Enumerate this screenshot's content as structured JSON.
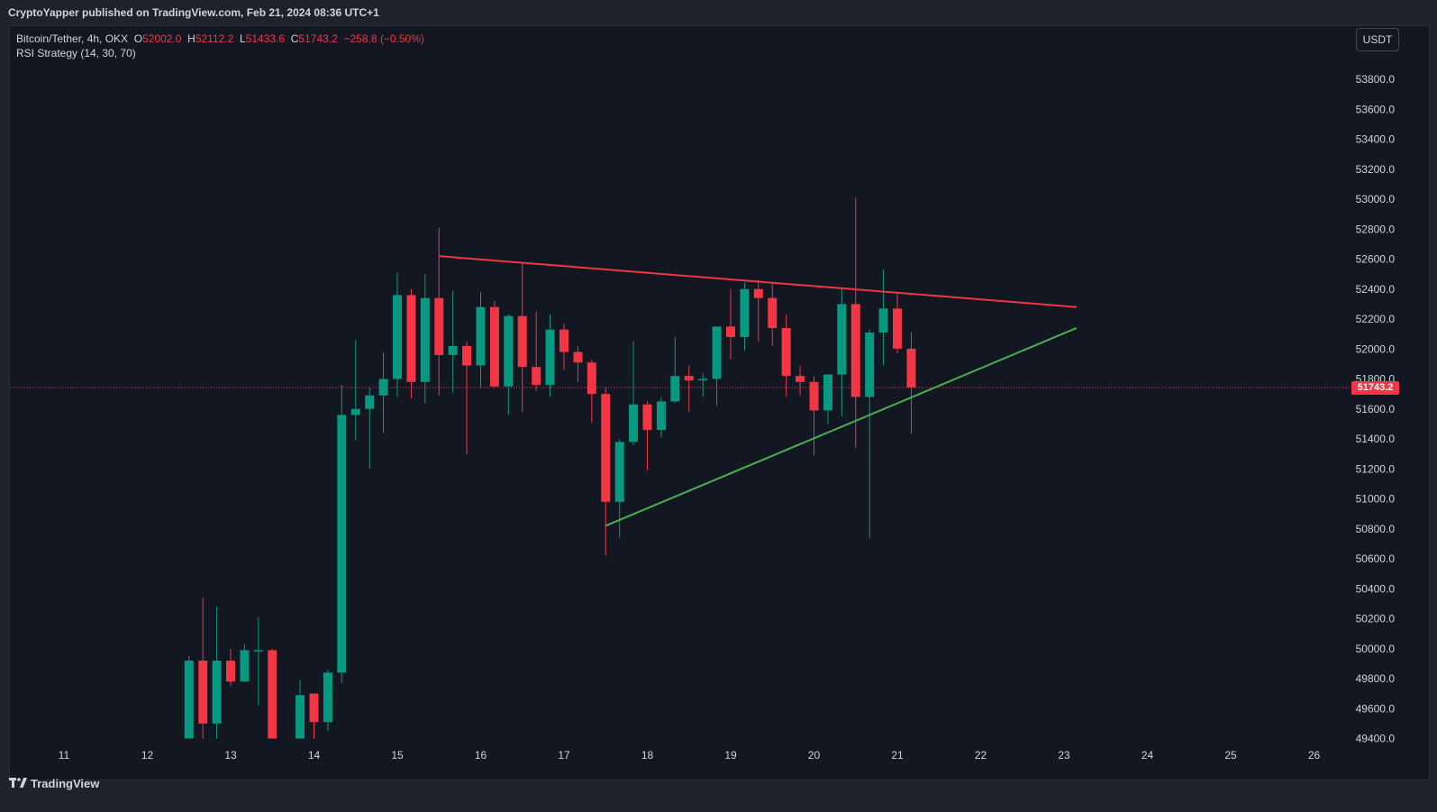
{
  "header": {
    "publisher": "CryptoYapper published on TradingView.com, Feb 21, 2024 08:36 UTC+1"
  },
  "legend": {
    "symbol": "Bitcoin/Tether, 4h, OKX",
    "open_label": "O",
    "open": "52002.0",
    "high_label": "H",
    "high": "52112.2",
    "low_label": "L",
    "low": "51433.6",
    "close_label": "C",
    "close": "51743.2",
    "change": "−258.8 (−0.50%)",
    "indicator": "RSI Strategy (14, 30, 70)"
  },
  "currency_button": "USDT",
  "last_price_tag": "51743.2",
  "footer": {
    "brand": "TradingView"
  },
  "colors": {
    "up": "#089981",
    "down": "#f23645",
    "resistance": "#f23645",
    "support": "#4caf50",
    "background": "#131722"
  },
  "chart_data": {
    "type": "candlestick",
    "title": "Bitcoin/Tether, 4h, OKX",
    "x_tick_labels": [
      "11",
      "12",
      "13",
      "14",
      "15",
      "16",
      "17",
      "18",
      "19",
      "20",
      "21",
      "22",
      "23",
      "24",
      "25",
      "26"
    ],
    "x_tick_values": [
      11,
      12,
      13,
      14,
      15,
      16,
      17,
      18,
      19,
      20,
      21,
      22,
      23,
      24,
      25,
      26
    ],
    "y_tick_labels": [
      "53800.0",
      "53600.0",
      "53400.0",
      "53200.0",
      "53000.0",
      "52800.0",
      "52600.0",
      "52400.0",
      "52200.0",
      "52000.0",
      "51800.0",
      "51600.0",
      "51400.0",
      "51200.0",
      "51000.0",
      "50800.0",
      "50600.0",
      "50400.0",
      "50200.0",
      "50000.0",
      "49800.0",
      "49600.0",
      "49400.0"
    ],
    "ylim": [
      49350,
      54050
    ],
    "last_price": 51743.2,
    "candles": [
      {
        "t": 12.5,
        "o": 49400,
        "h": 49950,
        "l": 49400,
        "c": 49920
      },
      {
        "t": 12.667,
        "o": 49920,
        "h": 50340,
        "l": 49400,
        "c": 49500
      },
      {
        "t": 12.833,
        "o": 49500,
        "h": 50280,
        "l": 49400,
        "c": 49920
      },
      {
        "t": 13.0,
        "o": 49920,
        "h": 50000,
        "l": 49750,
        "c": 49780
      },
      {
        "t": 13.167,
        "o": 49780,
        "h": 50030,
        "l": 49780,
        "c": 49990
      },
      {
        "t": 13.333,
        "o": 49990,
        "h": 50210,
        "l": 49620,
        "c": 49990
      },
      {
        "t": 13.5,
        "o": 49990,
        "h": 50000,
        "l": 49400,
        "c": 49400
      },
      {
        "t": 13.833,
        "o": 49400,
        "h": 49790,
        "l": 49400,
        "c": 49690
      },
      {
        "t": 14.0,
        "o": 49700,
        "h": 49700,
        "l": 49400,
        "c": 49510
      },
      {
        "t": 14.167,
        "o": 49510,
        "h": 49860,
        "l": 49450,
        "c": 49840
      },
      {
        "t": 14.333,
        "o": 49840,
        "h": 51760,
        "l": 49770,
        "c": 51560
      },
      {
        "t": 14.5,
        "o": 51560,
        "h": 52060,
        "l": 51390,
        "c": 51600
      },
      {
        "t": 14.667,
        "o": 51600,
        "h": 51740,
        "l": 51200,
        "c": 51690
      },
      {
        "t": 14.833,
        "o": 51690,
        "h": 51980,
        "l": 51440,
        "c": 51800
      },
      {
        "t": 15.0,
        "o": 51800,
        "h": 52510,
        "l": 51680,
        "c": 52360
      },
      {
        "t": 15.167,
        "o": 52360,
        "h": 52400,
        "l": 51670,
        "c": 51780
      },
      {
        "t": 15.333,
        "o": 51780,
        "h": 52500,
        "l": 51640,
        "c": 52340
      },
      {
        "t": 15.5,
        "o": 52340,
        "h": 52810,
        "l": 51690,
        "c": 51960
      },
      {
        "t": 15.667,
        "o": 51960,
        "h": 52390,
        "l": 51710,
        "c": 52020
      },
      {
        "t": 15.833,
        "o": 52020,
        "h": 52050,
        "l": 51300,
        "c": 51890
      },
      {
        "t": 16.0,
        "o": 51890,
        "h": 52380,
        "l": 51740,
        "c": 52280
      },
      {
        "t": 16.167,
        "o": 52280,
        "h": 52320,
        "l": 51740,
        "c": 51750
      },
      {
        "t": 16.333,
        "o": 51750,
        "h": 52230,
        "l": 51560,
        "c": 52220
      },
      {
        "t": 16.5,
        "o": 52220,
        "h": 52580,
        "l": 51580,
        "c": 51880
      },
      {
        "t": 16.667,
        "o": 51880,
        "h": 52250,
        "l": 51720,
        "c": 51760
      },
      {
        "t": 16.833,
        "o": 51760,
        "h": 52230,
        "l": 51680,
        "c": 52130
      },
      {
        "t": 17.0,
        "o": 52130,
        "h": 52170,
        "l": 51860,
        "c": 51980
      },
      {
        "t": 17.167,
        "o": 51980,
        "h": 52020,
        "l": 51780,
        "c": 51910
      },
      {
        "t": 17.333,
        "o": 51910,
        "h": 51930,
        "l": 51510,
        "c": 51700
      },
      {
        "t": 17.5,
        "o": 51700,
        "h": 51740,
        "l": 50620,
        "c": 50980
      },
      {
        "t": 17.667,
        "o": 50980,
        "h": 51400,
        "l": 50740,
        "c": 51380
      },
      {
        "t": 17.833,
        "o": 51380,
        "h": 52050,
        "l": 51360,
        "c": 51630
      },
      {
        "t": 18.0,
        "o": 51630,
        "h": 51650,
        "l": 51190,
        "c": 51460
      },
      {
        "t": 18.167,
        "o": 51460,
        "h": 51680,
        "l": 51410,
        "c": 51650
      },
      {
        "t": 18.333,
        "o": 51650,
        "h": 52080,
        "l": 51640,
        "c": 51820
      },
      {
        "t": 18.5,
        "o": 51820,
        "h": 51890,
        "l": 51580,
        "c": 51790
      },
      {
        "t": 18.667,
        "o": 51790,
        "h": 51840,
        "l": 51680,
        "c": 51800
      },
      {
        "t": 18.833,
        "o": 51800,
        "h": 52140,
        "l": 51620,
        "c": 52150
      },
      {
        "t": 19.0,
        "o": 52150,
        "h": 52400,
        "l": 51930,
        "c": 52080
      },
      {
        "t": 19.167,
        "o": 52080,
        "h": 52440,
        "l": 51990,
        "c": 52400
      },
      {
        "t": 19.333,
        "o": 52400,
        "h": 52460,
        "l": 52050,
        "c": 52340
      },
      {
        "t": 19.5,
        "o": 52340,
        "h": 52440,
        "l": 52020,
        "c": 52140
      },
      {
        "t": 19.667,
        "o": 52140,
        "h": 52230,
        "l": 51680,
        "c": 51820
      },
      {
        "t": 19.833,
        "o": 51820,
        "h": 51890,
        "l": 51690,
        "c": 51780
      },
      {
        "t": 20.0,
        "o": 51780,
        "h": 51820,
        "l": 51290,
        "c": 51590
      },
      {
        "t": 20.167,
        "o": 51590,
        "h": 51830,
        "l": 51500,
        "c": 51830
      },
      {
        "t": 20.333,
        "o": 51830,
        "h": 52400,
        "l": 51550,
        "c": 52300
      },
      {
        "t": 20.5,
        "o": 52300,
        "h": 53010,
        "l": 51340,
        "c": 51680
      },
      {
        "t": 20.667,
        "o": 51680,
        "h": 52130,
        "l": 50740,
        "c": 52110
      },
      {
        "t": 20.833,
        "o": 52110,
        "h": 52530,
        "l": 51890,
        "c": 52270
      },
      {
        "t": 21.0,
        "o": 52270,
        "h": 52380,
        "l": 51970,
        "c": 52002
      },
      {
        "t": 21.167,
        "o": 52002,
        "h": 52112.2,
        "l": 51433.6,
        "c": 51743.2
      }
    ],
    "trendlines": [
      {
        "name": "Resistance",
        "color": "#f23645",
        "points": [
          [
            15.5,
            52620
          ],
          [
            23.15,
            52280
          ]
        ]
      },
      {
        "name": "Support",
        "color": "#4caf50",
        "points": [
          [
            17.5,
            50820
          ],
          [
            23.15,
            52140
          ]
        ]
      }
    ]
  }
}
